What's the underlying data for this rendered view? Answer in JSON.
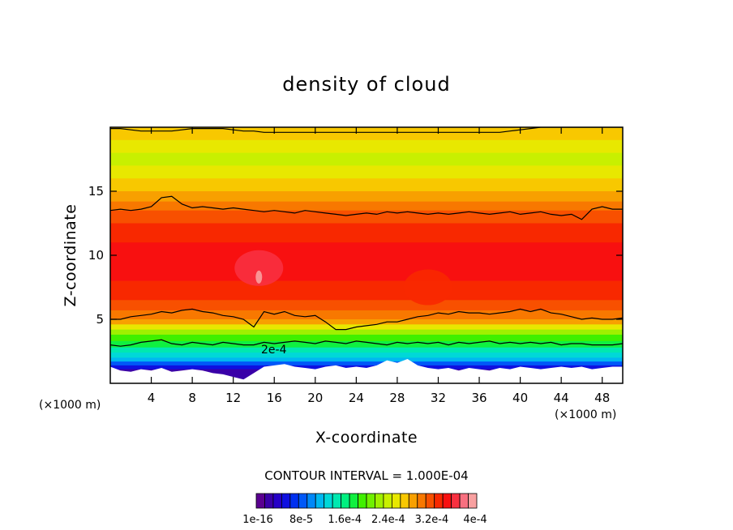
{
  "chart_data": {
    "type": "heatmap",
    "title": "density of cloud",
    "xlabel": "X-coordinate",
    "ylabel": "Z-coordinate",
    "x_unit_left": "(×1000 m)",
    "x_unit_right": "(×1000 m)",
    "xlim": [
      0,
      50
    ],
    "ylim": [
      0,
      20
    ],
    "x_ticks": [
      4,
      8,
      12,
      16,
      20,
      24,
      28,
      32,
      36,
      40,
      44,
      48
    ],
    "y_ticks": [
      5,
      10,
      15
    ],
    "contour_interval_text": "CONTOUR INTERVAL = 1.000E-04",
    "contour_label": "2e-4",
    "colorbar": {
      "labels": [
        "1e-16",
        "8e-5",
        "1.6e-4",
        "2.4e-4",
        "3.2e-4",
        "4e-4"
      ],
      "colors": [
        "#5a0090",
        "#3a00a8",
        "#2600c8",
        "#0f10e0",
        "#0030f0",
        "#0058f8",
        "#0088f8",
        "#00b8f0",
        "#00d8d8",
        "#00e8b0",
        "#00f080",
        "#10f040",
        "#40f000",
        "#70f000",
        "#a0f000",
        "#c8f000",
        "#e8e800",
        "#f8c800",
        "#f8a000",
        "#f87800",
        "#f85000",
        "#f82800",
        "#f81010",
        "#f83040",
        "#f87080",
        "#f8a0a0"
      ]
    },
    "bands": [
      {
        "z": 20.0,
        "level": 17
      },
      {
        "z": 19.0,
        "level": 16
      },
      {
        "z": 18.0,
        "level": 15
      },
      {
        "z": 17.0,
        "level": 16
      },
      {
        "z": 16.0,
        "level": 17
      },
      {
        "z": 15.0,
        "level": 18
      },
      {
        "z": 14.2,
        "level": 19
      },
      {
        "z": 13.5,
        "level": 20
      },
      {
        "z": 12.5,
        "level": 21
      },
      {
        "z": 11.0,
        "level": 22
      },
      {
        "z": 8.0,
        "level": 21
      },
      {
        "z": 6.5,
        "level": 20
      },
      {
        "z": 5.7,
        "level": 19
      },
      {
        "z": 5.0,
        "level": 18
      },
      {
        "z": 4.6,
        "level": 16
      },
      {
        "z": 4.2,
        "level": 14
      },
      {
        "z": 3.8,
        "level": 12
      },
      {
        "z": 3.3,
        "level": 11
      },
      {
        "z": 2.8,
        "level": 9
      },
      {
        "z": 2.4,
        "level": 8
      },
      {
        "z": 2.0,
        "level": 7
      },
      {
        "z": 1.7,
        "level": 5
      },
      {
        "z": 1.4,
        "level": 3
      },
      {
        "z": 1.1,
        "level": 1
      }
    ],
    "contours": [
      {
        "z": [
          13.5,
          13.6,
          13.5,
          13.6,
          13.8,
          14.5,
          14.6,
          14.0,
          13.7,
          13.8,
          13.7,
          13.6,
          13.7,
          13.6,
          13.5,
          13.4,
          13.5,
          13.4,
          13.3,
          13.5,
          13.4,
          13.3,
          13.2,
          13.1,
          13.2,
          13.3,
          13.2,
          13.4,
          13.3,
          13.4,
          13.3,
          13.2,
          13.3,
          13.2,
          13.3,
          13.4,
          13.3,
          13.2,
          13.3,
          13.4,
          13.2,
          13.3,
          13.4,
          13.2,
          13.1,
          13.2,
          12.8,
          13.6,
          13.8,
          13.6,
          13.6
        ]
      },
      {
        "z": [
          5.0,
          5.0,
          5.2,
          5.3,
          5.4,
          5.6,
          5.5,
          5.7,
          5.8,
          5.6,
          5.5,
          5.3,
          5.2,
          5.0,
          4.4,
          5.6,
          5.4,
          5.6,
          5.3,
          5.2,
          5.3,
          4.8,
          4.2,
          4.2,
          4.4,
          4.5,
          4.6,
          4.8,
          4.8,
          5.0,
          5.2,
          5.3,
          5.5,
          5.4,
          5.6,
          5.5,
          5.5,
          5.4,
          5.5,
          5.6,
          5.8,
          5.6,
          5.8,
          5.5,
          5.4,
          5.2,
          5.0,
          5.1,
          5.0,
          5.0,
          5.1
        ]
      },
      {
        "z": [
          3.0,
          2.9,
          3.0,
          3.2,
          3.3,
          3.4,
          3.1,
          3.0,
          3.2,
          3.1,
          3.0,
          3.2,
          3.1,
          3.0,
          3.0,
          3.2,
          3.1,
          3.2,
          3.3,
          3.2,
          3.1,
          3.3,
          3.2,
          3.1,
          3.3,
          3.2,
          3.1,
          3.0,
          3.2,
          3.1,
          3.2,
          3.1,
          3.2,
          3.0,
          3.2,
          3.1,
          3.2,
          3.3,
          3.1,
          3.2,
          3.1,
          3.2,
          3.1,
          3.2,
          3.0,
          3.1,
          3.1,
          3.0,
          3.0,
          3.0,
          3.1
        ]
      },
      {
        "z": [
          19.9,
          19.9,
          19.8,
          19.7,
          19.7,
          19.7,
          19.7,
          19.8,
          19.9,
          19.9,
          19.9,
          19.9,
          19.8,
          19.7,
          19.7,
          19.6,
          19.6,
          19.6,
          19.6,
          19.6,
          19.6,
          19.6,
          19.6,
          19.6,
          19.6,
          19.6,
          19.6,
          19.6,
          19.6,
          19.6,
          19.6,
          19.6,
          19.6,
          19.6,
          19.6,
          19.6,
          19.6,
          19.6,
          19.6,
          19.7,
          19.8,
          19.9,
          20.0,
          20.0,
          20.0,
          20.0,
          20.0,
          20.0,
          20.0,
          20.0,
          20.0
        ]
      }
    ],
    "ground_profile": [
      1.3,
      1.0,
      0.9,
      1.1,
      1.0,
      1.2,
      0.9,
      1.0,
      1.1,
      1.0,
      0.8,
      0.7,
      0.5,
      0.3,
      0.8,
      1.3,
      1.4,
      1.5,
      1.3,
      1.2,
      1.1,
      1.3,
      1.4,
      1.2,
      1.3,
      1.2,
      1.4,
      1.8,
      1.6,
      1.9,
      1.4,
      1.2,
      1.1,
      1.2,
      1.0,
      1.2,
      1.1,
      1.0,
      1.2,
      1.1,
      1.3,
      1.2,
      1.1,
      1.2,
      1.3,
      1.2,
      1.3,
      1.1,
      1.2,
      1.3,
      1.3
    ],
    "hotspots": [
      {
        "x": 14.5,
        "z": 9.0,
        "level": 23
      },
      {
        "x": 14.5,
        "z": 8.3,
        "level": 25
      },
      {
        "x": 31.0,
        "z": 7.5,
        "level": 21
      }
    ]
  }
}
